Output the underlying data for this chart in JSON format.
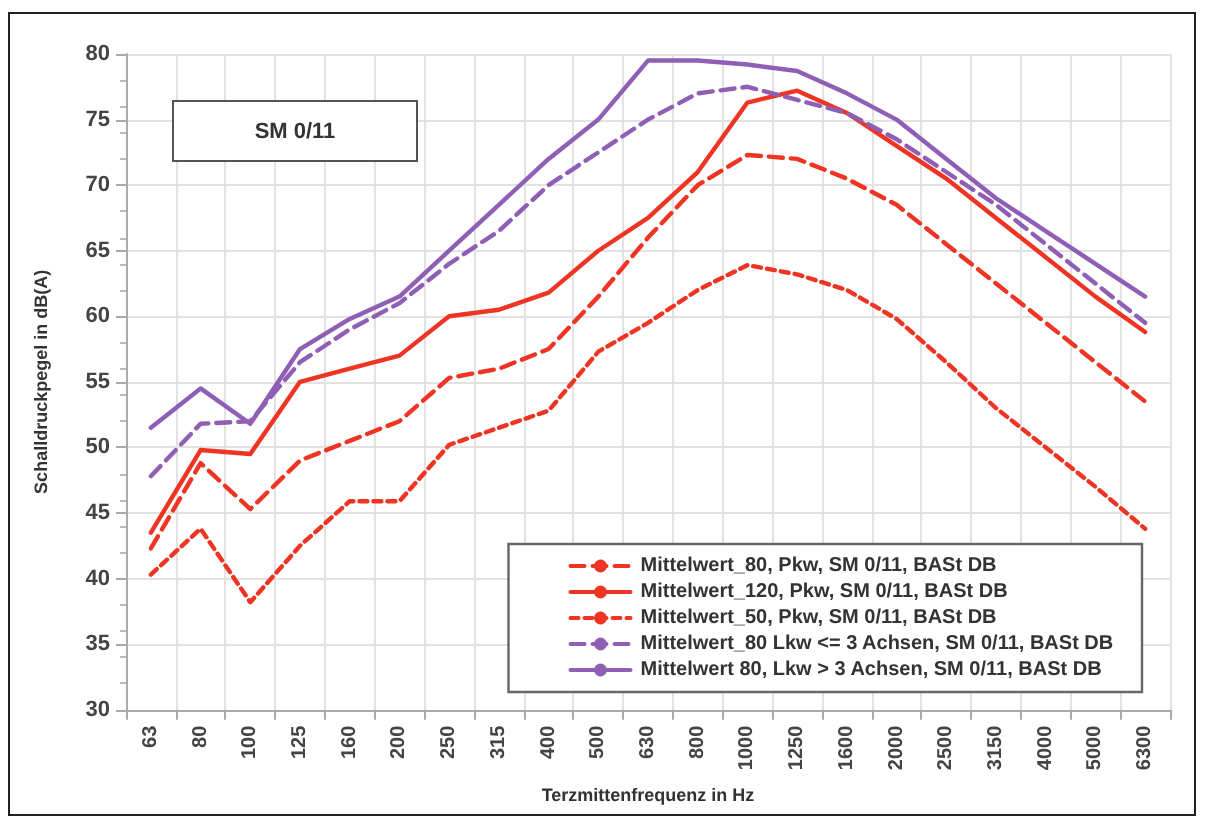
{
  "chart_data": {
    "type": "line",
    "xlabel": "Terzmittenfrequenz in Hz",
    "ylabel": "Schalldruckpegel in dB(A)",
    "annotations": [
      "SM 0/11"
    ],
    "categories": [
      "63",
      "80",
      "100",
      "125",
      "160",
      "200",
      "250",
      "315",
      "400",
      "500",
      "630",
      "800",
      "1000",
      "1250",
      "1600",
      "2000",
      "2500",
      "3150",
      "4000",
      "5000",
      "6300"
    ],
    "ylim": [
      30,
      80
    ],
    "yticks": [
      30,
      35,
      40,
      45,
      50,
      55,
      60,
      65,
      70,
      75,
      80
    ],
    "grid": true,
    "legend": "bottom right",
    "marker": "none",
    "series": [
      {
        "name": "Mittelwert_80, Pkw, SM 0/11, BASt DB",
        "color": "#ee3524",
        "line_style": "dashed",
        "values": [
          42.3,
          48.8,
          45.3,
          49,
          50.5,
          52,
          55.3,
          56,
          57.5,
          61.5,
          66,
          70,
          72.3,
          72,
          70.5,
          68.5,
          65.5,
          62.5,
          59.5,
          56.5,
          53.5
        ]
      },
      {
        "name": "Mittelwert_120, Pkw, SM 0/11, BASt DB",
        "color": "#ee3524",
        "line_style": "solid",
        "values": [
          43.5,
          49.8,
          49.5,
          55,
          56,
          57,
          60,
          60.5,
          61.8,
          65,
          67.5,
          71,
          76.3,
          77.2,
          75.5,
          73,
          70.5,
          67.5,
          64.5,
          61.5,
          58.8
        ]
      },
      {
        "name": "Mittelwert_50, Pkw, SM 0/11, BASt DB",
        "color": "#ee3524",
        "line_style": "dotted",
        "values": [
          40.3,
          43.8,
          38.2,
          42.5,
          45.9,
          45.9,
          50.2,
          51.5,
          52.8,
          57.3,
          59.5,
          62,
          63.9,
          63.2,
          62,
          59.8,
          56.5,
          53,
          50,
          47,
          43.8
        ]
      },
      {
        "name": "Mittelwert_80 Lkw <= 3 Achsen, SM 0/11, BASt DB",
        "color": "#8e5fb5",
        "line_style": "dashed",
        "values": [
          47.8,
          51.8,
          52,
          56.5,
          59,
          61,
          64,
          66.5,
          70,
          72.5,
          75,
          77,
          77.5,
          76.5,
          75.5,
          73.5,
          71,
          68.5,
          65.5,
          62.5,
          59.5
        ]
      },
      {
        "name": "Mittelwert 80, Lkw > 3 Achsen, SM 0/11, BASt DB",
        "color": "#8e5fb5",
        "line_style": "solid",
        "values": [
          51.5,
          54.5,
          51.8,
          57.5,
          59.8,
          61.5,
          65,
          68.5,
          72,
          75,
          79.5,
          79.5,
          79.2,
          78.7,
          77,
          75,
          72,
          69,
          66.5,
          64,
          61.5
        ]
      }
    ]
  }
}
